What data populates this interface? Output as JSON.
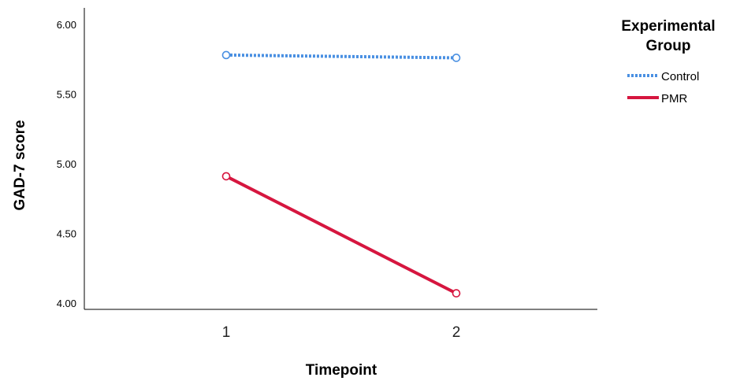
{
  "chart_data": {
    "type": "line",
    "title": "",
    "xlabel": "Timepoint",
    "ylabel": "GAD-7 score",
    "categories": [
      "1",
      "2"
    ],
    "ylim": [
      4.0,
      6.0
    ],
    "yticks": [
      "4.00",
      "4.50",
      "5.00",
      "5.50",
      "6.00"
    ],
    "ytick_values": [
      4.0,
      4.5,
      5.0,
      5.5,
      6.0
    ],
    "grid": false,
    "legend": {
      "title_line1": "Experimental",
      "title_line2": "Group",
      "placement": "right"
    },
    "series": [
      {
        "name": "Control",
        "values": [
          5.78,
          5.76
        ],
        "color": "#4a90e2",
        "style": "dotted"
      },
      {
        "name": "PMR",
        "values": [
          4.91,
          4.07
        ],
        "color": "#d6163f",
        "style": "solid"
      }
    ]
  }
}
